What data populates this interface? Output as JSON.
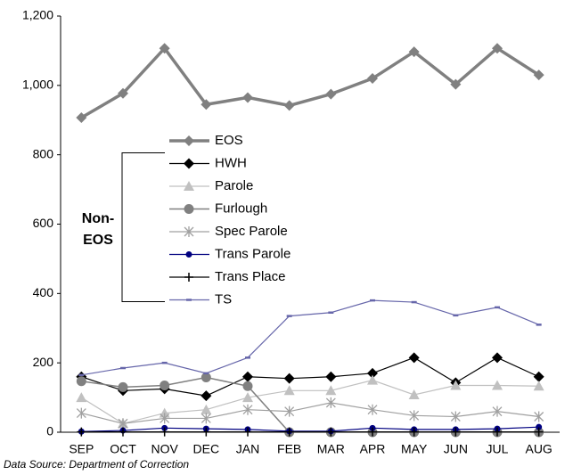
{
  "chart_data": {
    "type": "line",
    "categories": [
      "SEP",
      "OCT",
      "NOV",
      "DEC",
      "JAN",
      "FEB",
      "MAR",
      "APR",
      "MAY",
      "JUN",
      "JUL",
      "AUG"
    ],
    "series": [
      {
        "name": "EOS",
        "color": "#808080",
        "marker": "diamond",
        "line_width": 3.5,
        "values": [
          907,
          977,
          1107,
          945,
          965,
          942,
          975,
          1020,
          1097,
          1003,
          1107,
          1030
        ]
      },
      {
        "name": "HWH",
        "color": "#000000",
        "marker": "diamond",
        "line_width": 1.2,
        "values": [
          160,
          120,
          125,
          105,
          160,
          155,
          160,
          170,
          215,
          143,
          215,
          160
        ]
      },
      {
        "name": "Parole",
        "color": "#c0c0c0",
        "marker": "triangle",
        "line_width": 1.2,
        "values": [
          100,
          25,
          55,
          65,
          100,
          120,
          120,
          150,
          108,
          135,
          135,
          133
        ]
      },
      {
        "name": "Furlough",
        "color": "#808080",
        "marker": "circle",
        "line_width": 1.5,
        "values": [
          147,
          130,
          135,
          158,
          133,
          0,
          0,
          0,
          0,
          0,
          0,
          0
        ]
      },
      {
        "name": "Spec Parole",
        "color": "#a0a0a0",
        "marker": "star",
        "line_width": 1.2,
        "values": [
          55,
          25,
          40,
          40,
          65,
          60,
          85,
          65,
          48,
          45,
          60,
          45
        ]
      },
      {
        "name": "Trans Parole",
        "color": "#000080",
        "marker": "circle",
        "line_width": 1.2,
        "values": [
          2,
          5,
          12,
          10,
          8,
          3,
          3,
          12,
          8,
          8,
          10,
          15
        ]
      },
      {
        "name": "Trans Place",
        "color": "#000000",
        "marker": "plus",
        "line_width": 1.2,
        "values": [
          1,
          1,
          1,
          1,
          1,
          1,
          1,
          1,
          1,
          1,
          1,
          1
        ]
      },
      {
        "name": "TS",
        "color": "#6666aa",
        "marker": "dash",
        "line_width": 1.2,
        "values": [
          165,
          185,
          200,
          170,
          215,
          335,
          345,
          380,
          375,
          337,
          360,
          310
        ]
      }
    ],
    "ylim": [
      0,
      1200
    ],
    "yticks": [
      0,
      200,
      400,
      600,
      800,
      {
        "value": 1000,
        "label": "1,000"
      },
      {
        "value": 1200,
        "label": "1,200"
      }
    ],
    "annotation": [
      "Non-",
      "EOS"
    ],
    "source": "Data Source: Department of Correction"
  }
}
